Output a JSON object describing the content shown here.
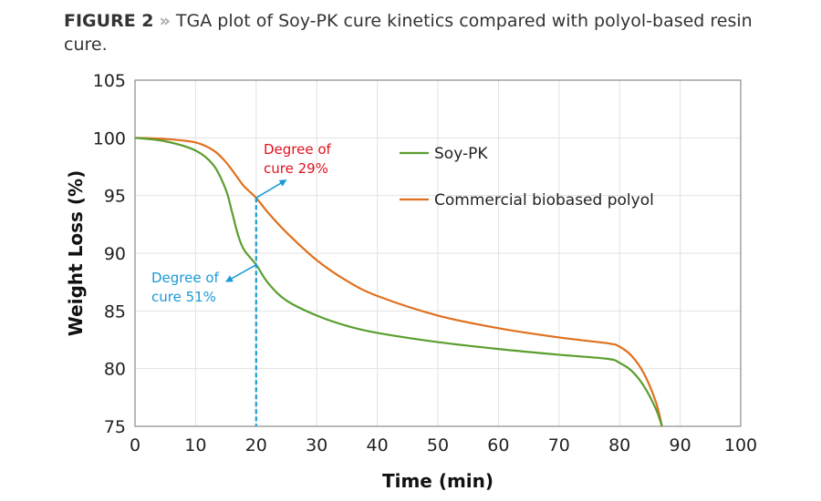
{
  "caption": {
    "figure_label": "FIGURE 2",
    "separator": "»",
    "text": "TGA plot of Soy-PK cure kinetics compared with polyol-based resin cure."
  },
  "chart_data": {
    "type": "line",
    "xlabel": "Time (min)",
    "ylabel": "Weight Loss (%)",
    "xlim": [
      0,
      100
    ],
    "ylim": [
      75,
      105
    ],
    "xticks": [
      0,
      10,
      20,
      30,
      40,
      50,
      60,
      70,
      80,
      90,
      100
    ],
    "yticks": [
      75,
      80,
      85,
      90,
      95,
      100,
      105
    ],
    "grid": true,
    "legend_placement": "top-right",
    "series": [
      {
        "name": "Soy-PK",
        "color": "#5a9e2f",
        "x": [
          0,
          5,
          10,
          13,
          15,
          16,
          17,
          18,
          20,
          22,
          25,
          30,
          35,
          40,
          50,
          60,
          70,
          78,
          80,
          82,
          84,
          86,
          87
        ],
        "y": [
          100,
          99.7,
          98.9,
          97.6,
          95.5,
          93.6,
          91.6,
          90.3,
          89,
          87.4,
          85.9,
          84.6,
          83.7,
          83.1,
          82.3,
          81.7,
          81.2,
          80.85,
          80.5,
          79.8,
          78.5,
          76.5,
          75
        ]
      },
      {
        "name": "Commercial biobased polyol",
        "color": "#e0701e",
        "x": [
          0,
          5,
          10,
          13,
          15,
          17,
          18,
          20,
          22,
          25,
          30,
          35,
          40,
          50,
          60,
          70,
          78,
          80,
          82,
          84,
          86,
          87
        ],
        "y": [
          100,
          99.9,
          99.6,
          98.9,
          97.9,
          96.5,
          95.8,
          94.8,
          93.5,
          91.8,
          89.4,
          87.6,
          86.3,
          84.6,
          83.5,
          82.7,
          82.2,
          81.9,
          81.1,
          79.6,
          77.1,
          75
        ]
      }
    ],
    "annotations": [
      {
        "text_lines": [
          "Degree of",
          "cure 29%"
        ],
        "color": "#e3101e",
        "at": [
          20,
          94.8
        ]
      },
      {
        "text_lines": [
          "Degree of",
          "cure 51%"
        ],
        "color": "#1a9ad6",
        "at": [
          20,
          89
        ]
      }
    ],
    "reference_line": {
      "x": 20,
      "color": "#1a9ad6",
      "style": "dashed"
    }
  }
}
